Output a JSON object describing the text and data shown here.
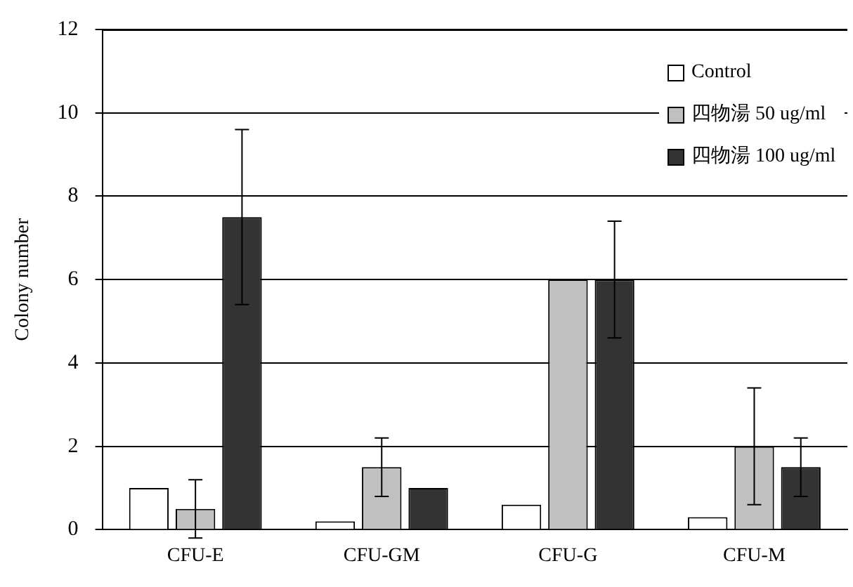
{
  "chart_data": {
    "type": "bar",
    "ylabel": "Colony number",
    "categories": [
      "CFU-E",
      "CFU-GM",
      "CFU-G",
      "CFU-M"
    ],
    "series": [
      {
        "name": "Control",
        "color": "#ffffff",
        "values": [
          1.0,
          0.2,
          0.6,
          0.3
        ]
      },
      {
        "name": "四物湯 50 ug/ml",
        "color": "#c0c0c0",
        "values": [
          0.5,
          1.5,
          6.0,
          2.0
        ],
        "errors": [
          0.7,
          0.7,
          null,
          1.4
        ]
      },
      {
        "name": "四物湯 100 ug/ml",
        "color": "#333333",
        "values": [
          7.5,
          1.0,
          6.0,
          1.5
        ],
        "errors": [
          2.1,
          null,
          1.4,
          0.7
        ]
      }
    ],
    "ylim": [
      0,
      12
    ],
    "yticks": [
      0,
      2,
      4,
      6,
      8,
      10,
      12
    ],
    "grid": "y",
    "legend": "top right"
  }
}
